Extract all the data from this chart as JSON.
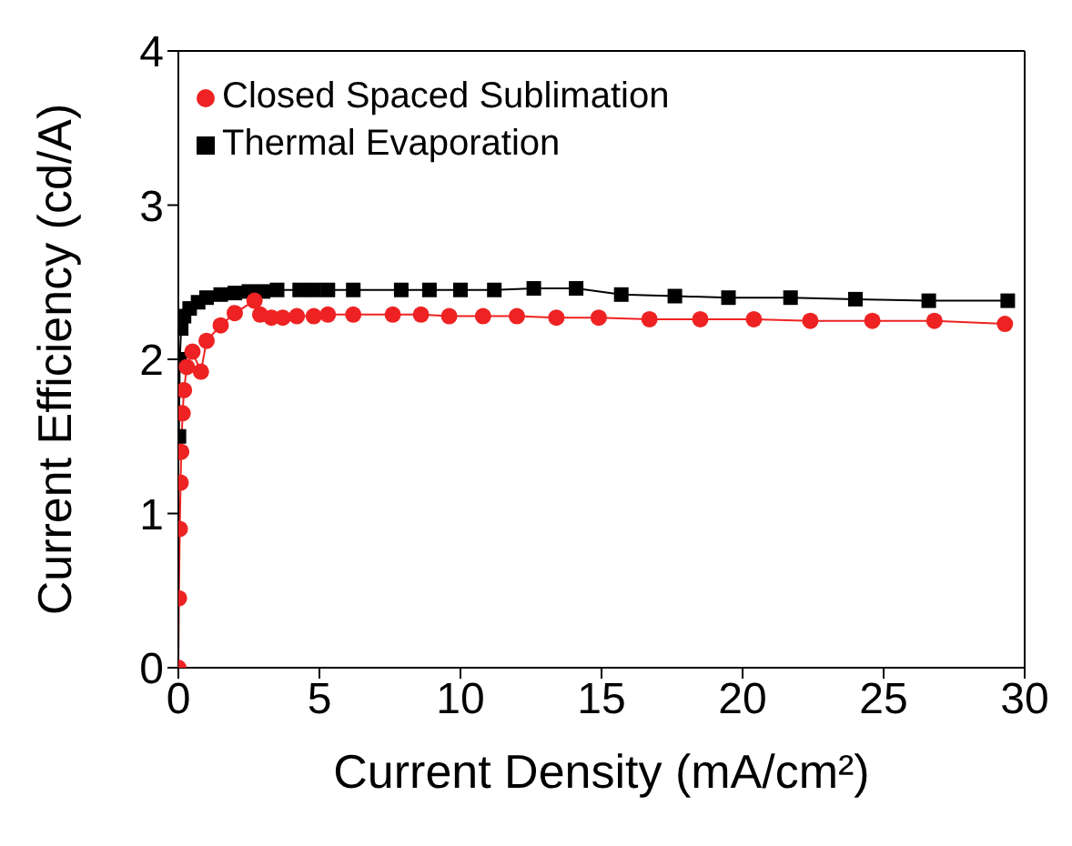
{
  "chart_data": {
    "type": "line",
    "xlabel": "Current Density (mA/cm²)",
    "ylabel": "Current Efficiency (cd/A)",
    "xlim": [
      0,
      30
    ],
    "xticks": [
      0,
      5,
      10,
      15,
      20,
      25,
      30
    ],
    "ylim": [
      0,
      4
    ],
    "yticks": [
      0,
      1,
      2,
      3,
      4
    ],
    "grid": false,
    "legend": "top left",
    "line_style": "solid",
    "series": [
      {
        "name": "Thermal Evaporation",
        "color": "#000000",
        "marker": "square",
        "x": [
          0.02,
          0.05,
          0.1,
          0.2,
          0.4,
          0.7,
          1.0,
          1.5,
          2.0,
          2.5,
          3.0,
          3.5,
          4.3,
          4.8,
          5.3,
          6.2,
          7.9,
          8.9,
          10.0,
          11.2,
          12.6,
          14.1,
          15.7,
          17.6,
          19.5,
          21.7,
          24.0,
          26.6,
          29.4
        ],
        "values": [
          1.5,
          2.0,
          2.2,
          2.28,
          2.33,
          2.37,
          2.4,
          2.42,
          2.43,
          2.44,
          2.44,
          2.45,
          2.45,
          2.45,
          2.45,
          2.45,
          2.45,
          2.45,
          2.45,
          2.45,
          2.46,
          2.46,
          2.42,
          2.41,
          2.4,
          2.4,
          2.39,
          2.38,
          2.38
        ]
      },
      {
        "name": "Closed Spaced Sublimation",
        "color": "#ee2222",
        "marker": "circle",
        "x": [
          0.0,
          0.02,
          0.05,
          0.08,
          0.1,
          0.15,
          0.2,
          0.3,
          0.5,
          0.8,
          1.0,
          1.5,
          2.0,
          2.7,
          2.9,
          3.3,
          3.7,
          4.2,
          4.8,
          5.3,
          6.2,
          7.6,
          8.6,
          9.6,
          10.8,
          12.0,
          13.4,
          14.9,
          16.7,
          18.5,
          20.4,
          22.4,
          24.6,
          26.8,
          29.3
        ],
        "values": [
          0,
          0.45,
          0.9,
          1.2,
          1.4,
          1.65,
          1.8,
          1.95,
          2.05,
          1.92,
          2.12,
          2.22,
          2.3,
          2.38,
          2.29,
          2.27,
          2.27,
          2.28,
          2.28,
          2.29,
          2.29,
          2.29,
          2.29,
          2.28,
          2.28,
          2.28,
          2.27,
          2.27,
          2.26,
          2.26,
          2.26,
          2.25,
          2.25,
          2.25,
          2.23
        ]
      }
    ]
  }
}
